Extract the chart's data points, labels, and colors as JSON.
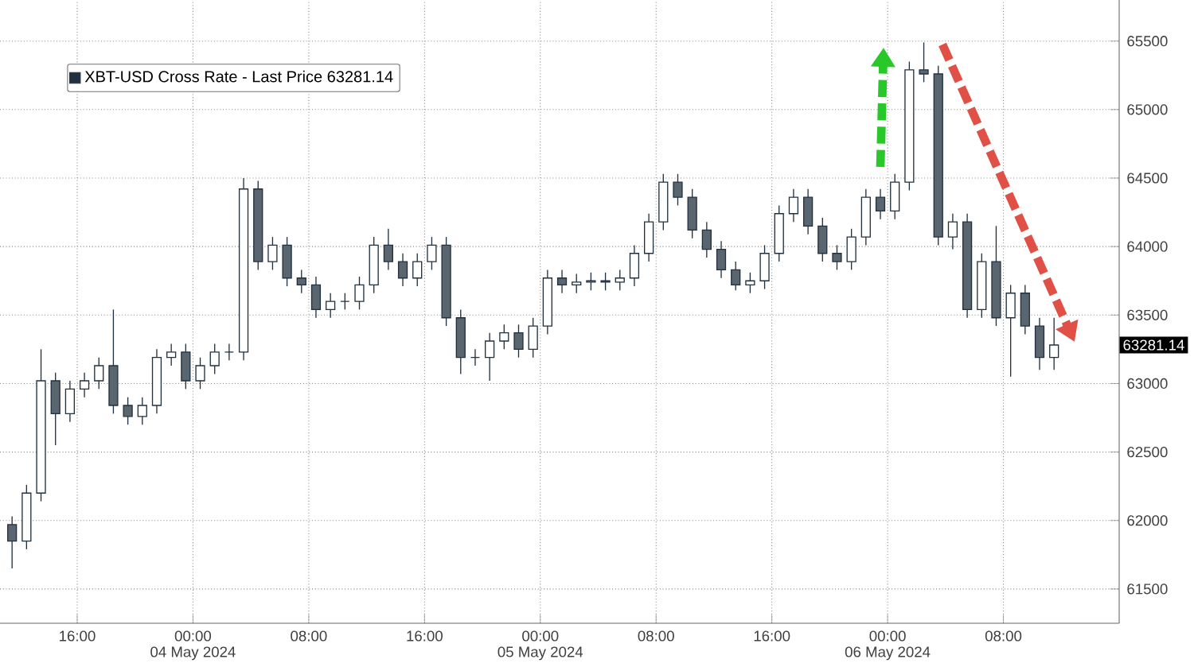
{
  "chart_data": {
    "type": "candlestick",
    "series": [
      {
        "name": "XBT-USD Cross Rate - Last Price 63281.14",
        "color": "#22313f",
        "x": [
          "2024-05-03T11:30",
          "2024-05-03T12:30",
          "2024-05-03T13:30",
          "2024-05-03T14:30",
          "2024-05-03T15:30",
          "2024-05-03T16:30",
          "2024-05-03T17:30",
          "2024-05-03T18:30",
          "2024-05-03T19:30",
          "2024-05-03T20:30",
          "2024-05-03T21:30",
          "2024-05-03T22:30",
          "2024-05-03T23:30",
          "2024-05-04T00:30",
          "2024-05-04T01:30",
          "2024-05-04T02:30",
          "2024-05-04T03:30",
          "2024-05-04T04:30",
          "2024-05-04T05:30",
          "2024-05-04T06:30",
          "2024-05-04T07:30",
          "2024-05-04T08:30",
          "2024-05-04T09:30",
          "2024-05-04T10:30",
          "2024-05-04T11:30",
          "2024-05-04T12:30",
          "2024-05-04T13:30",
          "2024-05-04T14:30",
          "2024-05-04T15:30",
          "2024-05-04T16:30",
          "2024-05-04T17:30",
          "2024-05-04T18:30",
          "2024-05-04T19:30",
          "2024-05-04T20:30",
          "2024-05-04T21:30",
          "2024-05-04T22:30",
          "2024-05-04T23:30",
          "2024-05-05T00:30",
          "2024-05-05T01:30",
          "2024-05-05T02:30",
          "2024-05-05T03:30",
          "2024-05-05T04:30",
          "2024-05-05T05:30",
          "2024-05-05T06:30",
          "2024-05-05T07:30",
          "2024-05-05T08:30",
          "2024-05-05T09:30",
          "2024-05-05T10:30",
          "2024-05-05T11:30",
          "2024-05-05T12:30",
          "2024-05-05T13:30",
          "2024-05-05T14:30",
          "2024-05-05T15:30",
          "2024-05-05T16:30",
          "2024-05-05T17:30",
          "2024-05-05T18:30",
          "2024-05-05T19:30",
          "2024-05-05T20:30",
          "2024-05-05T21:30",
          "2024-05-05T22:30",
          "2024-05-05T23:30",
          "2024-05-06T00:30",
          "2024-05-06T01:30",
          "2024-05-06T02:30",
          "2024-05-06T03:30",
          "2024-05-06T04:30",
          "2024-05-06T05:30",
          "2024-05-06T06:30",
          "2024-05-06T07:30",
          "2024-05-06T08:30",
          "2024-05-06T09:30",
          "2024-05-06T10:30",
          "2024-05-06T11:30"
        ],
        "ohlc": [
          [
            61970,
            62030,
            61650,
            61850
          ],
          [
            61850,
            62260,
            61790,
            62200
          ],
          [
            62200,
            63250,
            62140,
            63020
          ],
          [
            63020,
            63080,
            62550,
            62780
          ],
          [
            62780,
            63020,
            62720,
            62960
          ],
          [
            62960,
            63080,
            62900,
            63020
          ],
          [
            63020,
            63190,
            62960,
            63130
          ],
          [
            63130,
            63540,
            62780,
            62840
          ],
          [
            62840,
            62900,
            62700,
            62760
          ],
          [
            62760,
            62900,
            62700,
            62840
          ],
          [
            62840,
            63250,
            62780,
            63190
          ],
          [
            63190,
            63290,
            63130,
            63230
          ],
          [
            63230,
            63290,
            62960,
            63020
          ],
          [
            63020,
            63190,
            62960,
            63130
          ],
          [
            63130,
            63290,
            63070,
            63230
          ],
          [
            63230,
            63290,
            63170,
            63230
          ],
          [
            63230,
            64500,
            63170,
            64420
          ],
          [
            64420,
            64480,
            63830,
            63890
          ],
          [
            63890,
            64070,
            63830,
            64010
          ],
          [
            64010,
            64070,
            63710,
            63770
          ],
          [
            63770,
            63830,
            63660,
            63720
          ],
          [
            63720,
            63780,
            63480,
            63540
          ],
          [
            63540,
            63660,
            63480,
            63600
          ],
          [
            63600,
            63660,
            63540,
            63600
          ],
          [
            63600,
            63780,
            63540,
            63720
          ],
          [
            63720,
            64070,
            63660,
            64010
          ],
          [
            64010,
            64130,
            63830,
            63890
          ],
          [
            63890,
            63950,
            63710,
            63770
          ],
          [
            63770,
            63950,
            63710,
            63890
          ],
          [
            63890,
            64070,
            63830,
            64010
          ],
          [
            64010,
            64070,
            63420,
            63480
          ],
          [
            63480,
            63540,
            63070,
            63190
          ],
          [
            63190,
            63250,
            63130,
            63190
          ],
          [
            63190,
            63370,
            63020,
            63310
          ],
          [
            63310,
            63430,
            63250,
            63370
          ],
          [
            63370,
            63430,
            63190,
            63250
          ],
          [
            63250,
            63480,
            63190,
            63420
          ],
          [
            63420,
            63830,
            63360,
            63770
          ],
          [
            63770,
            63830,
            63660,
            63720
          ],
          [
            63720,
            63800,
            63660,
            63740
          ],
          [
            63740,
            63810,
            63680,
            63750
          ],
          [
            63750,
            63810,
            63680,
            63740
          ],
          [
            63740,
            63830,
            63680,
            63770
          ],
          [
            63770,
            64010,
            63710,
            63950
          ],
          [
            63950,
            64240,
            63890,
            64180
          ],
          [
            64180,
            64530,
            64120,
            64470
          ],
          [
            64470,
            64530,
            64300,
            64360
          ],
          [
            64360,
            64420,
            64060,
            64120
          ],
          [
            64120,
            64180,
            63920,
            63980
          ],
          [
            63980,
            64040,
            63770,
            63830
          ],
          [
            63830,
            63890,
            63680,
            63720
          ],
          [
            63720,
            63810,
            63660,
            63750
          ],
          [
            63750,
            64010,
            63690,
            63950
          ],
          [
            63950,
            64300,
            63890,
            64240
          ],
          [
            64240,
            64420,
            64180,
            64360
          ],
          [
            64360,
            64420,
            64090,
            64150
          ],
          [
            64150,
            64210,
            63890,
            63950
          ],
          [
            63950,
            64010,
            63830,
            63890
          ],
          [
            63890,
            64130,
            63830,
            64070
          ],
          [
            64070,
            64420,
            64010,
            64360
          ],
          [
            64360,
            64420,
            64200,
            64260
          ],
          [
            64260,
            64530,
            64200,
            64470
          ],
          [
            64470,
            65350,
            64410,
            65290
          ],
          [
            65290,
            65490,
            65200,
            65260
          ],
          [
            65260,
            65320,
            64010,
            64070
          ],
          [
            64070,
            64240,
            63980,
            64180
          ],
          [
            64180,
            64240,
            63480,
            63540
          ],
          [
            63540,
            63950,
            63480,
            63890
          ],
          [
            63890,
            64150,
            63420,
            63480
          ],
          [
            63480,
            63720,
            63050,
            63660
          ],
          [
            63660,
            63720,
            63360,
            63420
          ],
          [
            63420,
            63480,
            63100,
            63190
          ],
          [
            63190,
            63480,
            63100,
            63281.14
          ]
        ]
      }
    ],
    "xlim": [
      "2024-05-03T10:40",
      "2024-05-06T16:00"
    ],
    "xticks": [
      {
        "value": "2024-05-03T16:00",
        "label": "16:00"
      },
      {
        "value": "2024-05-04T00:00",
        "label": "00:00"
      },
      {
        "value": "2024-05-04T08:00",
        "label": "08:00"
      },
      {
        "value": "2024-05-04T16:00",
        "label": "16:00"
      },
      {
        "value": "2024-05-05T00:00",
        "label": "00:00"
      },
      {
        "value": "2024-05-05T08:00",
        "label": "08:00"
      },
      {
        "value": "2024-05-05T16:00",
        "label": "16:00"
      },
      {
        "value": "2024-05-06T00:00",
        "label": "00:00"
      },
      {
        "value": "2024-05-06T08:00",
        "label": "08:00"
      }
    ],
    "x2lim": [
      "2024-05-03T10:40",
      "2024-05-06T16:00"
    ],
    "x2ticks": [
      {
        "value": "2024-05-04T00:00",
        "label": "04 May 2024"
      },
      {
        "value": "2024-05-05T00:00",
        "label": "05 May 2024"
      },
      {
        "value": "2024-05-06T00:00",
        "label": "06 May 2024"
      }
    ],
    "ylim": [
      61250,
      65800
    ],
    "yticks": [
      61500,
      62000,
      62500,
      63000,
      63500,
      64000,
      64500,
      65000,
      65500
    ],
    "legend": "top left",
    "grid": true,
    "annotations": [
      "63281.14"
    ]
  }
}
